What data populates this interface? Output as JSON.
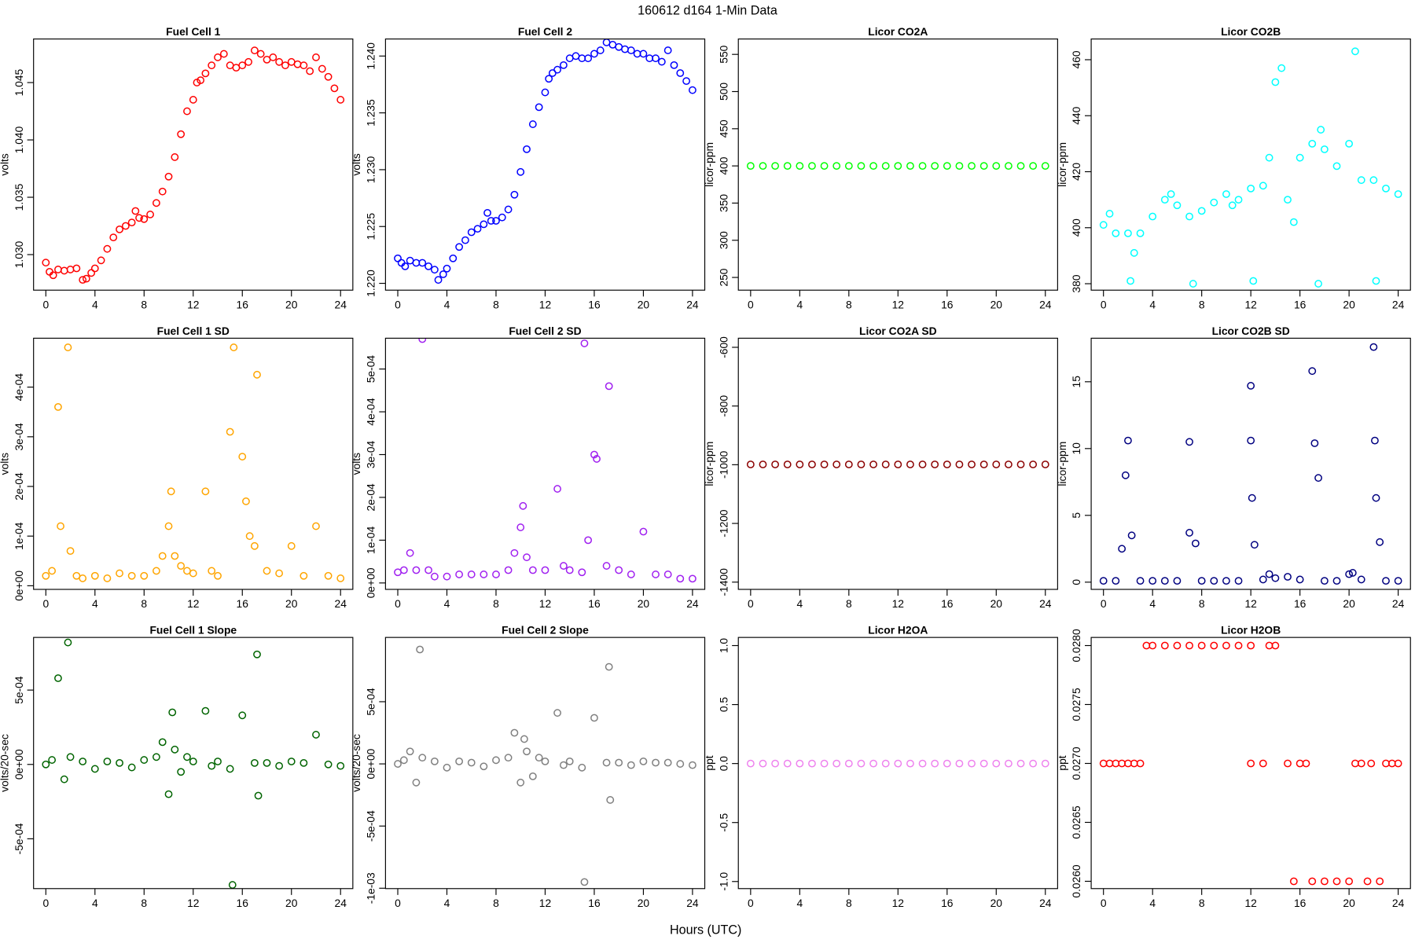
{
  "title": "160612   d164   1-Min Data",
  "x_label": "Hours (UTC)",
  "chart_data": [
    {
      "type": "scatter",
      "title": "Fuel Cell 1",
      "y_label": "volts",
      "color": "#ff0000",
      "xlim": [
        -1,
        25
      ],
      "xticks": [
        0,
        4,
        8,
        12,
        16,
        20,
        24
      ],
      "ylim": [
        1.0269,
        1.0488
      ],
      "yticks": [
        {
          "value": 1.03,
          "label": "1.030"
        },
        1.035,
        {
          "value": 1.04,
          "label": "1.040"
        },
        1.045
      ],
      "x": [
        0,
        0.3,
        0.6,
        1,
        1.5,
        2,
        2.5,
        3,
        3.3,
        3.7,
        4,
        4.5,
        5,
        5.5,
        6,
        6.5,
        7,
        7.3,
        7.6,
        8,
        8.5,
        9,
        9.5,
        10,
        10.5,
        11,
        11.5,
        12,
        12.3,
        12.6,
        13,
        13.5,
        14,
        14.5,
        15,
        15.5,
        16,
        16.5,
        17,
        17.5,
        18,
        18.5,
        19,
        19.5,
        20,
        20.5,
        21,
        21.5,
        22,
        22.5,
        23,
        23.5,
        24
      ],
      "values": [
        1.0293,
        1.0285,
        1.0282,
        1.0287,
        1.0286,
        1.0287,
        1.0288,
        1.0278,
        1.0279,
        1.0284,
        1.0288,
        1.0295,
        1.0305,
        1.0315,
        1.0322,
        1.0325,
        1.0328,
        1.0338,
        1.0332,
        1.0331,
        1.0335,
        1.0345,
        1.0355,
        1.0368,
        1.0385,
        1.0405,
        1.0425,
        1.0435,
        1.045,
        1.0452,
        1.0458,
        1.0465,
        1.0472,
        1.0475,
        1.0465,
        1.0463,
        1.0465,
        1.0468,
        1.0478,
        1.0475,
        1.047,
        1.0472,
        1.0468,
        1.0465,
        1.0468,
        1.0466,
        1.0465,
        1.046,
        1.0472,
        1.0462,
        1.0455,
        1.0445,
        1.0435
      ]
    },
    {
      "type": "scatter",
      "title": "Fuel Cell 2",
      "y_label": "volts",
      "color": "#0000ff",
      "xlim": [
        -1,
        25
      ],
      "xticks": [
        0,
        4,
        8,
        12,
        16,
        20,
        24
      ],
      "ylim": [
        1.2194,
        1.2415
      ],
      "yticks": [
        {
          "value": 1.22,
          "label": "1.220"
        },
        1.225,
        {
          "value": 1.23,
          "label": "1.230"
        },
        1.235,
        {
          "value": 1.24,
          "label": "1.240"
        }
      ],
      "x": [
        0,
        0.3,
        0.6,
        1,
        1.5,
        2,
        2.5,
        3,
        3.3,
        3.7,
        4,
        4.5,
        5,
        5.5,
        6,
        6.5,
        7,
        7.3,
        7.6,
        8,
        8.5,
        9,
        9.5,
        10,
        10.5,
        11,
        11.5,
        12,
        12.3,
        12.6,
        13,
        13.5,
        14,
        14.5,
        15,
        15.5,
        16,
        16.5,
        17,
        17.5,
        18,
        18.5,
        19,
        19.5,
        20,
        20.5,
        21,
        21.5,
        22,
        22.5,
        23,
        23.5,
        24
      ],
      "values": [
        1.2222,
        1.2218,
        1.2215,
        1.222,
        1.2218,
        1.2218,
        1.2215,
        1.2212,
        1.2203,
        1.2208,
        1.2213,
        1.2222,
        1.2232,
        1.2238,
        1.2245,
        1.2248,
        1.2252,
        1.2262,
        1.2255,
        1.2255,
        1.2258,
        1.2265,
        1.2278,
        1.2298,
        1.2318,
        1.234,
        1.2355,
        1.2368,
        1.238,
        1.2385,
        1.2388,
        1.2392,
        1.2398,
        1.24,
        1.2398,
        1.2398,
        1.2402,
        1.2405,
        1.2412,
        1.241,
        1.2408,
        1.2406,
        1.2405,
        1.2402,
        1.2402,
        1.2398,
        1.2398,
        1.2395,
        1.2405,
        1.2392,
        1.2385,
        1.2378,
        1.237
      ]
    },
    {
      "type": "scatter",
      "title": "Licor CO2A",
      "y_label": "licor-ppm",
      "color": "#00ff00",
      "xlim": [
        -1,
        25
      ],
      "xticks": [
        0,
        4,
        8,
        12,
        16,
        20,
        24
      ],
      "ylim": [
        232.9,
        570.7
      ],
      "yticks": [
        250,
        300,
        350,
        400,
        450,
        500,
        550
      ],
      "x": [
        0,
        1,
        2,
        3,
        4,
        5,
        6,
        7,
        8,
        9,
        10,
        11,
        12,
        13,
        14,
        15,
        16,
        17,
        18,
        19,
        20,
        21,
        22,
        23,
        24
      ],
      "values": [
        400,
        400,
        400,
        400,
        400,
        400,
        400,
        400,
        400,
        400,
        400,
        400,
        400,
        400,
        400,
        400,
        400,
        400,
        400,
        400,
        400,
        400,
        400,
        400,
        400
      ]
    },
    {
      "type": "scatter",
      "title": "Licor CO2B",
      "y_label": "licor-ppm",
      "color": "#00ffff",
      "xlim": [
        -1,
        25
      ],
      "xticks": [
        0,
        4,
        8,
        12,
        16,
        20,
        24
      ],
      "ylim": [
        377.7,
        467.4
      ],
      "yticks": [
        380,
        400,
        420,
        440,
        460
      ],
      "x": [
        0,
        0.5,
        1,
        2,
        2.2,
        2.5,
        3,
        4,
        5,
        5.5,
        6,
        7,
        7.3,
        8,
        9,
        10,
        10.5,
        11,
        12,
        12.2,
        13,
        13.5,
        14,
        14.5,
        15,
        15.5,
        16,
        17,
        17.5,
        17.7,
        18,
        19,
        20,
        20.5,
        21,
        22,
        22.2,
        23,
        24
      ],
      "values": [
        401,
        405,
        398,
        398,
        381,
        391,
        398,
        404,
        410,
        412,
        408,
        404,
        380,
        406,
        409,
        412,
        408,
        410,
        414,
        381,
        415,
        425,
        452,
        457,
        410,
        402,
        425,
        430,
        380,
        435,
        428,
        422,
        430,
        463,
        417,
        417,
        381,
        414,
        412
      ]
    },
    {
      "type": "scatter",
      "title": "Fuel Cell 1 SD",
      "y_label": "volts",
      "color": "#ffa500",
      "xlim": [
        -1,
        25
      ],
      "xticks": [
        0,
        4,
        8,
        12,
        16,
        20,
        24
      ],
      "ylim": [
        -7.3e-06,
        0.0004985
      ],
      "yticks": [
        {
          "value": 0,
          "label": "0e+00"
        },
        {
          "value": 0.0001,
          "label": "1e-04"
        },
        {
          "value": 0.0002,
          "label": "2e-04"
        },
        {
          "value": 0.0003,
          "label": "3e-04"
        },
        {
          "value": 0.0004,
          "label": "4e-04"
        }
      ],
      "x": [
        0,
        0.5,
        1,
        1.2,
        1.8,
        2,
        2.5,
        3,
        4,
        5,
        6,
        7,
        8,
        9,
        9.5,
        10,
        10.2,
        10.5,
        11,
        11.5,
        12,
        13,
        13.5,
        14,
        15,
        15.3,
        16,
        16.3,
        16.6,
        17,
        17.2,
        18,
        19,
        20,
        21,
        22,
        23,
        24
      ],
      "values": [
        2e-05,
        3e-05,
        0.00036,
        0.00012,
        0.00048,
        7e-05,
        2e-05,
        1.5e-05,
        2e-05,
        1.5e-05,
        2.5e-05,
        2e-05,
        2e-05,
        3e-05,
        6e-05,
        0.00012,
        0.00019,
        6e-05,
        4e-05,
        3e-05,
        2.5e-05,
        0.00019,
        3e-05,
        2e-05,
        0.00031,
        0.00048,
        0.00026,
        0.00017,
        0.0001,
        8e-05,
        0.000425,
        3e-05,
        2.5e-05,
        8e-05,
        2e-05,
        0.00012,
        2e-05,
        1.5e-05
      ]
    },
    {
      "type": "scatter",
      "title": "Fuel Cell 2 SD",
      "y_label": "volts",
      "color": "#a020f0",
      "xlim": [
        -1,
        25
      ],
      "xticks": [
        0,
        4,
        8,
        12,
        16,
        20,
        24
      ],
      "ylim": [
        -1.5e-05,
        0.000572
      ],
      "yticks": [
        {
          "value": 0,
          "label": "0e+00"
        },
        {
          "value": 0.0001,
          "label": "1e-04"
        },
        {
          "value": 0.0002,
          "label": "2e-04"
        },
        {
          "value": 0.0003,
          "label": "3e-04"
        },
        {
          "value": 0.0004,
          "label": "4e-04"
        },
        {
          "value": 0.0005,
          "label": "5e-04"
        }
      ],
      "x": [
        0,
        0.5,
        1,
        1.5,
        2,
        2.5,
        3,
        4,
        5,
        6,
        7,
        8,
        9,
        9.5,
        10,
        10.2,
        10.5,
        11,
        12,
        13,
        13.5,
        14,
        15,
        15.2,
        15.5,
        16,
        16.2,
        17,
        17.2,
        18,
        19,
        20,
        21,
        22,
        23,
        24
      ],
      "values": [
        2.5e-05,
        3e-05,
        7e-05,
        3e-05,
        0.00057,
        3e-05,
        1.5e-05,
        1.5e-05,
        2e-05,
        2e-05,
        2e-05,
        2e-05,
        3e-05,
        7e-05,
        0.00013,
        0.00018,
        6e-05,
        3e-05,
        3e-05,
        0.00022,
        4e-05,
        3e-05,
        2.5e-05,
        0.00056,
        0.0001,
        0.0003,
        0.00029,
        4e-05,
        0.00046,
        3e-05,
        2e-05,
        0.00012,
        2e-05,
        2e-05,
        1e-05,
        1e-05
      ]
    },
    {
      "type": "scatter",
      "title": "Licor CO2A SD",
      "y_label": "licor-ppm",
      "color": "#8b0000",
      "xlim": [
        -1,
        25
      ],
      "xticks": [
        0,
        4,
        8,
        12,
        16,
        20,
        24
      ],
      "ylim": [
        -1424.7,
        -569
      ],
      "yticks": [
        -1400,
        -1200,
        -1000,
        -800,
        -600
      ],
      "x": [
        0,
        1,
        2,
        3,
        4,
        5,
        6,
        7,
        8,
        9,
        10,
        11,
        12,
        13,
        14,
        15,
        16,
        17,
        18,
        19,
        20,
        21,
        22,
        23,
        24
      ],
      "values": [
        -999,
        -999,
        -999,
        -999,
        -999,
        -999,
        -999,
        -999,
        -999,
        -999,
        -999,
        -999,
        -999,
        -999,
        -999,
        -999,
        -999,
        -999,
        -999,
        -999,
        -999,
        -999,
        -999,
        -999,
        -999
      ]
    },
    {
      "type": "scatter",
      "title": "Licor CO2B SD",
      "y_label": "licor-ppm",
      "color": "#000080",
      "xlim": [
        -1,
        25
      ],
      "xticks": [
        0,
        4,
        8,
        12,
        16,
        20,
        24
      ],
      "ylim": [
        -0.54,
        18.26
      ],
      "yticks": [
        0,
        5,
        10,
        15
      ],
      "x": [
        0,
        1,
        1.5,
        1.8,
        2,
        2.3,
        3,
        4,
        5,
        6,
        7,
        7,
        7.5,
        8,
        9,
        10,
        11,
        12,
        12,
        12.1,
        12.3,
        13,
        13.5,
        14,
        15,
        16,
        17,
        17.2,
        17.5,
        18,
        19,
        20,
        20.3,
        21,
        22,
        22.1,
        22.2,
        22.5,
        23,
        24
      ],
      "values": [
        0.1,
        0.1,
        2.5,
        8,
        10.6,
        3.5,
        0.1,
        0.1,
        0.1,
        0.1,
        10.5,
        3.7,
        2.9,
        0.1,
        0.1,
        0.1,
        0.1,
        14.7,
        10.6,
        6.3,
        2.8,
        0.2,
        0.6,
        0.3,
        0.4,
        0.2,
        15.8,
        10.4,
        7.8,
        0.1,
        0.1,
        0.6,
        0.7,
        0.2,
        17.6,
        10.6,
        6.3,
        3,
        0.1,
        0.1
      ]
    },
    {
      "type": "scatter",
      "title": "Fuel Cell 1 Slope",
      "y_label": "volts/20-sec",
      "color": "#006400",
      "xlim": [
        -1,
        25
      ],
      "xticks": [
        0,
        4,
        8,
        12,
        16,
        20,
        24
      ],
      "ylim": [
        -0.000835,
        0.000854
      ],
      "yticks": [
        {
          "value": -0.0005,
          "label": "-5e-04"
        },
        {
          "value": 0,
          "label": "0e+00"
        },
        {
          "value": 0.0005,
          "label": "5e-04"
        }
      ],
      "x": [
        0,
        0.5,
        1,
        1.5,
        1.8,
        2,
        3,
        4,
        5,
        6,
        7,
        8,
        9,
        9.5,
        10,
        10.3,
        10.5,
        11,
        11.5,
        12,
        13,
        13.5,
        14,
        15,
        15.2,
        16,
        17,
        17.2,
        17.3,
        18,
        19,
        20,
        21,
        22,
        23,
        24
      ],
      "values": [
        0,
        3e-05,
        0.00058,
        -0.0001,
        0.00082,
        5e-05,
        2e-05,
        -3e-05,
        2e-05,
        1e-05,
        -2e-05,
        3e-05,
        5e-05,
        0.00015,
        -0.0002,
        0.00035,
        0.0001,
        -5e-05,
        5e-05,
        2e-05,
        0.00036,
        -1e-05,
        2e-05,
        -3e-05,
        -0.00081,
        0.00033,
        1e-05,
        0.00074,
        -0.00021,
        1e-05,
        -1e-05,
        2e-05,
        1e-05,
        0.0002,
        0,
        -1e-05
      ]
    },
    {
      "type": "scatter",
      "title": "Fuel Cell 2 Slope",
      "y_label": "volts/20-sec",
      "color": "#808080",
      "xlim": [
        -1,
        25
      ],
      "xticks": [
        0,
        4,
        8,
        12,
        16,
        20,
        24
      ],
      "ylim": [
        -0.001003,
        0.001017
      ],
      "yticks": [
        {
          "value": -0.001,
          "label": "-1e-03"
        },
        {
          "value": -0.0005,
          "label": "-5e-04"
        },
        {
          "value": 0,
          "label": "0e+00"
        },
        {
          "value": 0.0005,
          "label": "5e-04"
        }
      ],
      "x": [
        0,
        0.5,
        1,
        1.5,
        1.8,
        2,
        3,
        4,
        5,
        6,
        7,
        8,
        9,
        9.5,
        10,
        10.3,
        10.5,
        11,
        11.5,
        12,
        13,
        13.5,
        14,
        15,
        15.2,
        16,
        17,
        17.2,
        17.3,
        18,
        19,
        20,
        21,
        22,
        23,
        24
      ],
      "values": [
        0,
        3e-05,
        0.0001,
        -0.00015,
        0.00092,
        5e-05,
        2e-05,
        -3e-05,
        2e-05,
        1e-05,
        -2e-05,
        3e-05,
        5e-05,
        0.00025,
        -0.00015,
        0.0002,
        0.0001,
        -0.0001,
        5e-05,
        2e-05,
        0.00041,
        -1e-05,
        2e-05,
        -3e-05,
        -0.00095,
        0.00037,
        1e-05,
        0.00078,
        -0.00029,
        1e-05,
        -1e-05,
        2e-05,
        1e-05,
        1e-05,
        0,
        -1e-05
      ]
    },
    {
      "type": "scatter",
      "title": "Licor H2OA",
      "y_label": "ppt",
      "color": "#ee82ee",
      "xlim": [
        -1,
        25
      ],
      "xticks": [
        0,
        4,
        8,
        12,
        16,
        20,
        24
      ],
      "ylim": [
        -1.06,
        1.069
      ],
      "yticks": [
        {
          "value": -1,
          "label": "-1.0"
        },
        -0.5,
        {
          "value": 0,
          "label": "0.0"
        },
        0.5,
        {
          "value": 1,
          "label": "1.0"
        }
      ],
      "x": [
        0,
        1,
        2,
        3,
        4,
        5,
        6,
        7,
        8,
        9,
        10,
        11,
        12,
        13,
        14,
        15,
        16,
        17,
        18,
        19,
        20,
        21,
        22,
        23,
        24
      ],
      "values": [
        0,
        0,
        0,
        0,
        0,
        0,
        0,
        0,
        0,
        0,
        0,
        0,
        0,
        0,
        0,
        0,
        0,
        0,
        0,
        0,
        0,
        0,
        0,
        0,
        0
      ]
    },
    {
      "type": "scatter",
      "title": "Licor H2OB",
      "y_label": "ppt",
      "color": "#ff0000",
      "xlim": [
        -1,
        25
      ],
      "xticks": [
        0,
        4,
        8,
        12,
        16,
        20,
        24
      ],
      "ylim": [
        0.025938,
        0.028069
      ],
      "yticks": [
        {
          "value": 0.026,
          "label": "0.0260"
        },
        0.0265,
        {
          "value": 0.027,
          "label": "0.0270"
        },
        0.0275,
        {
          "value": 0.028,
          "label": "0.0280"
        }
      ],
      "x": [
        0,
        0.5,
        1,
        1.5,
        2,
        2.5,
        3,
        3.5,
        4,
        5,
        6,
        7,
        8,
        9,
        10,
        11,
        12,
        12,
        13,
        13.5,
        14,
        15,
        16,
        16.5,
        15.5,
        17,
        18,
        19,
        20,
        20.5,
        21,
        21.5,
        21.8,
        22.5,
        23,
        23.5,
        24
      ],
      "values": [
        0.027,
        0.027,
        0.027,
        0.027,
        0.027,
        0.027,
        0.027,
        0.028,
        0.028,
        0.028,
        0.028,
        0.028,
        0.028,
        0.028,
        0.028,
        0.028,
        0.028,
        0.027,
        0.027,
        0.028,
        0.028,
        0.027,
        0.027,
        0.027,
        0.026,
        0.026,
        0.026,
        0.026,
        0.026,
        0.027,
        0.027,
        0.026,
        0.027,
        0.026,
        0.027,
        0.027,
        0.027
      ]
    }
  ]
}
